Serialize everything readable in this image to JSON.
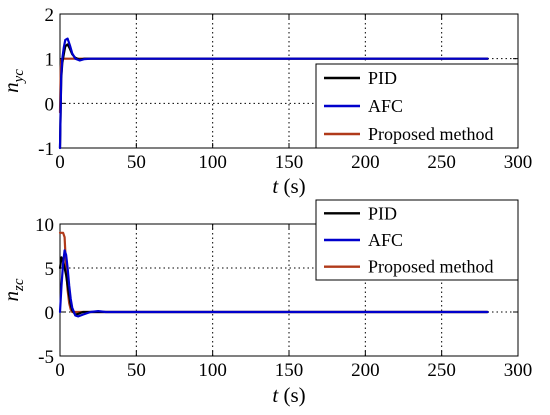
{
  "chart_data": [
    {
      "type": "line",
      "xlabel_var": "t",
      "xlabel_unit": " (s)",
      "ylabel_main": "n",
      "ylabel_sub": "yc",
      "xlim": [
        0,
        300
      ],
      "ylim": [
        -1,
        2
      ],
      "xticks": [
        0,
        50,
        100,
        150,
        200,
        250,
        300
      ],
      "yticks": [
        -1,
        0,
        1,
        2
      ],
      "grid": true,
      "legend_position": "bottom-right",
      "series": [
        {
          "name": "PID",
          "color": "#000000",
          "x": [
            0,
            0.8,
            1.5,
            2.5,
            3.5,
            5,
            6.5,
            8,
            10,
            13,
            16,
            20,
            40,
            100,
            200,
            280
          ],
          "y": [
            -1,
            0.55,
            0.9,
            1.1,
            1.28,
            1.32,
            1.22,
            1.1,
            1.02,
            0.98,
            1.0,
            1.0,
            1.0,
            1.0,
            1.0,
            1.0
          ]
        },
        {
          "name": "AFC",
          "color": "#0000cc",
          "x": [
            0,
            0.8,
            1.5,
            2.5,
            3.5,
            5,
            6.5,
            8,
            10,
            13,
            16,
            20,
            40,
            100,
            200,
            280
          ],
          "y": [
            -1,
            0.6,
            1.0,
            1.25,
            1.42,
            1.45,
            1.3,
            1.12,
            1.0,
            0.96,
            0.99,
            1.0,
            1.0,
            1.0,
            1.0,
            1.0
          ]
        },
        {
          "name": "Proposed method",
          "color": "#b03a1a",
          "x": [
            0,
            0.5,
            1,
            2,
            3,
            5,
            8,
            20,
            100,
            200,
            280
          ],
          "y": [
            -0.2,
            0.8,
            0.98,
            1.0,
            1.0,
            1.0,
            1.0,
            1.0,
            1.0,
            1.0,
            1.0
          ]
        }
      ]
    },
    {
      "type": "line",
      "xlabel_var": "t",
      "xlabel_unit": " (s)",
      "ylabel_main": "n",
      "ylabel_sub": "zc",
      "xlim": [
        0,
        300
      ],
      "ylim": [
        -5,
        10
      ],
      "xticks": [
        0,
        50,
        100,
        150,
        200,
        250,
        300
      ],
      "yticks": [
        -5,
        0,
        5,
        10
      ],
      "grid": true,
      "legend_position": "top-right",
      "series": [
        {
          "name": "PID",
          "color": "#000000",
          "x": [
            0,
            1,
            2,
            3,
            4,
            5,
            6,
            7,
            8,
            10,
            12,
            15,
            20,
            30,
            80,
            200,
            280
          ],
          "y": [
            5,
            6.2,
            5.8,
            5.0,
            4.2,
            3.0,
            1.8,
            0.8,
            0.2,
            -0.3,
            -0.2,
            0.0,
            0.0,
            0.0,
            0.0,
            0.0,
            0.0
          ]
        },
        {
          "name": "AFC",
          "color": "#0000cc",
          "x": [
            0,
            1,
            2,
            3,
            4,
            5,
            6,
            7,
            8,
            10,
            12,
            15,
            20,
            25,
            30,
            80,
            200,
            280
          ],
          "y": [
            0,
            3.0,
            5.5,
            7.0,
            6.5,
            5.0,
            3.0,
            1.5,
            0.5,
            -0.4,
            -0.5,
            -0.3,
            0.0,
            0.1,
            0.0,
            0.0,
            0.0,
            0.0
          ]
        },
        {
          "name": "Proposed method",
          "color": "#b03a1a",
          "x": [
            0,
            0.5,
            1,
            2,
            3,
            4,
            5,
            6,
            7,
            8,
            10,
            15,
            100,
            200,
            280
          ],
          "y": [
            9.0,
            9.0,
            9.0,
            9.0,
            8.5,
            5.0,
            2.5,
            1.0,
            0.3,
            0.0,
            0.0,
            0.0,
            0.0,
            0.0,
            0.0
          ]
        }
      ]
    }
  ]
}
